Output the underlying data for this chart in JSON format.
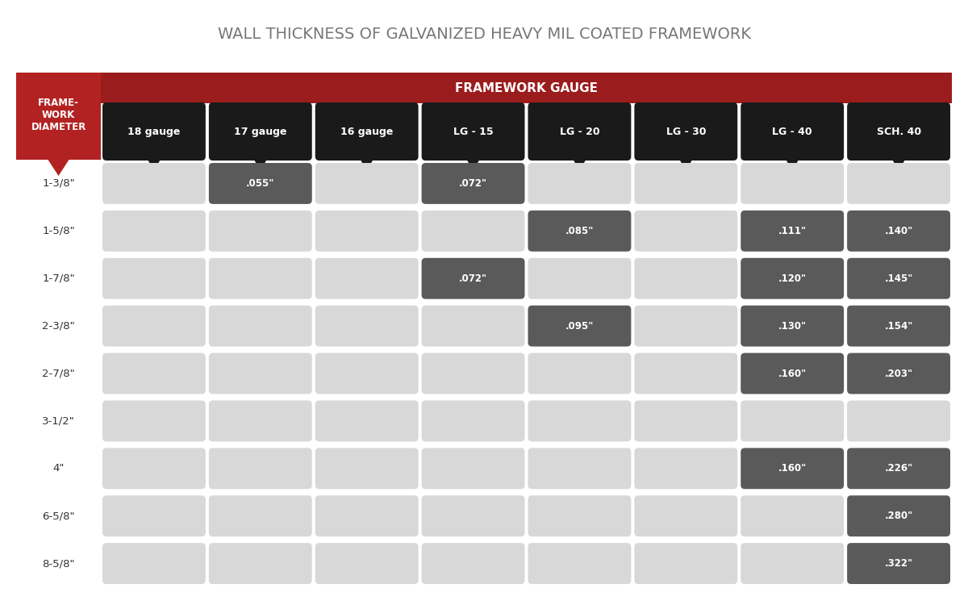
{
  "title": "WALL THICKNESS OF GALVANIZED HEAVY MIL COATED FRAMEWORK",
  "title_fontsize": 14,
  "header_row_label": "FRAME-\nWORK\nDIAMETER",
  "framework_gauge_label": "FRAMEWORK GAUGE",
  "col_headers": [
    "18 gauge",
    "17 gauge",
    "16 gauge",
    "LG - 15",
    "LG - 20",
    "LG - 30",
    "LG - 40",
    "SCH. 40"
  ],
  "row_labels": [
    "1-3/8\"",
    "1-5/8\"",
    "1-7/8\"",
    "2-3/8\"",
    "2-7/8\"",
    "3-1/2\"",
    "4\"",
    "6-5/8\"",
    "8-5/8\""
  ],
  "cell_data": [
    [
      "",
      ".055\"",
      "",
      ".072\"",
      "",
      "",
      "",
      ""
    ],
    [
      "",
      "",
      "",
      "",
      ".085\"",
      "",
      ".111\"",
      ".140\""
    ],
    [
      "",
      "",
      "",
      ".072\"",
      "",
      "",
      ".120\"",
      ".145\""
    ],
    [
      "",
      "",
      "",
      "",
      ".095\"",
      "",
      ".130\"",
      ".154\""
    ],
    [
      "",
      "",
      "",
      "",
      "",
      "",
      ".160\"",
      ".203\""
    ],
    [
      "",
      "",
      "",
      "",
      "",
      "",
      "",
      ""
    ],
    [
      "",
      "",
      "",
      "",
      "",
      "",
      ".160\"",
      ".226\""
    ],
    [
      "",
      "",
      "",
      "",
      "",
      "",
      "",
      ".280\""
    ],
    [
      "",
      "",
      "",
      "",
      "",
      "",
      "",
      ".322\""
    ]
  ],
  "bg_color": "#ffffff",
  "red_color": "#b22222",
  "dark_red_color": "#9b1c1c",
  "black_color": "#1a1a1a",
  "dark_cell_color": "#5a5a5a",
  "light_cell_color": "#d8d8d8",
  "cell_text_color": "#ffffff",
  "header_text_color": "#ffffff",
  "title_color": "#777777"
}
